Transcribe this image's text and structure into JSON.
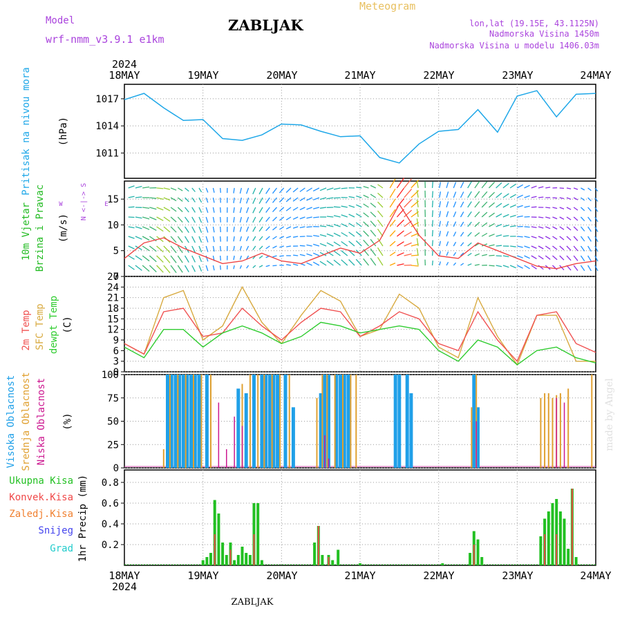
{
  "header": {
    "model_label": "Model",
    "model_name": "wrf-nmm_v3.9.1 e1km",
    "station": "ZABLJAK",
    "meteogram_label": "Meteogram",
    "lonlat": "lon,lat (19.15E, 43.1125N)",
    "elevation": "Nadmorska Visina 1450m",
    "model_elevation": "Nadmorska Visina u modelu 1406.03m"
  },
  "footer": {
    "station": "ZABLJAK",
    "watermark": "made by Angel"
  },
  "colors": {
    "pressure": "#1ea7e8",
    "total_precip": "#22c022",
    "convective": "#f04848",
    "frozen": "#f08030",
    "snow": "#4444ee",
    "graupel": "#22cccc",
    "temp2m": "#f05050",
    "sfc_temp": "#d8aa40",
    "dewpoint": "#30cc30",
    "high_cloud": "#20a0e8",
    "mid_cloud": "#e0a030",
    "low_cloud": "#cc1890",
    "wind_title": "#22bb22",
    "wind_speed": "#ee4444",
    "wind_dir_legend": "#aa44dd"
  },
  "chart_data": [
    {
      "type": "line",
      "panel": "pressure",
      "year_label": "2024",
      "x_tick_labels": [
        "18MAY",
        "19MAY",
        "20MAY",
        "21MAY",
        "22MAY",
        "23MAY",
        "24MAY"
      ],
      "x": [
        0,
        0.25,
        0.5,
        0.75,
        1,
        1.25,
        1.5,
        1.75,
        2,
        2.25,
        2.5,
        2.75,
        3,
        3.25,
        3.5,
        3.75,
        4,
        4.25,
        4.5,
        4.75,
        5,
        5.25,
        5.5,
        5.75,
        6
      ],
      "ylabel_title": "Pritisak na nivou mora",
      "ylabel_unit": "(hPa)",
      "y_ticks": [
        1011,
        1014,
        1017
      ],
      "ylim": [
        1008.2,
        1018.6
      ],
      "series": [
        {
          "values": [
            1016.9,
            1017.6,
            1016.0,
            1014.6,
            1014.7,
            1012.6,
            1012.4,
            1013.0,
            1014.2,
            1014.1,
            1013.4,
            1012.8,
            1012.9,
            1010.5,
            1009.9,
            1012.0,
            1013.4,
            1013.6,
            1015.8,
            1013.3,
            1017.3,
            1017.9,
            1015.0,
            1017.5,
            1017.6
          ]
        }
      ]
    },
    {
      "type": "line",
      "panel": "wind",
      "ylabel_title_1": "10m Vjetar",
      "ylabel_title_2": "Brzina i Pravac",
      "ylabel_unit": "(m/s)",
      "y_ticks": [
        0,
        5,
        10,
        15
      ],
      "ylim": [
        0,
        18.5
      ],
      "direction_legend_w": "W",
      "direction_legend_e": "E",
      "direction_legend_arrows": "N <-|-> S",
      "series": [
        {
          "values": [
            3.5,
            6.5,
            7.5,
            5.5,
            4.0,
            2.5,
            3.0,
            4.5,
            3.0,
            2.5,
            4.0,
            5.5,
            4.5,
            7.0,
            14.0,
            8.0,
            4.0,
            3.5,
            6.5,
            5.0,
            3.5,
            2.0,
            1.5,
            2.5,
            3.0
          ]
        }
      ]
    },
    {
      "type": "line",
      "panel": "temperature",
      "ylabel_2m": "2m Temp",
      "ylabel_sfc": "SFC Temp",
      "ylabel_dewpt": "dewpt Temp",
      "ylabel_unit": "(C)",
      "y_ticks": [
        0,
        3,
        6,
        9,
        12,
        15,
        18,
        21,
        24,
        27
      ],
      "ylim": [
        0,
        27
      ],
      "series": [
        {
          "name": "2m Temp",
          "values": [
            8,
            5,
            17,
            18,
            10,
            11,
            18,
            13,
            9,
            14,
            18,
            17,
            10,
            13,
            17,
            15,
            8,
            6,
            17,
            9,
            3,
            16,
            17,
            8,
            5.5
          ]
        },
        {
          "name": "SFC Temp",
          "values": [
            8,
            5,
            21,
            23,
            9,
            13,
            24,
            14,
            8,
            16,
            23,
            20,
            10,
            12,
            22,
            18,
            7,
            4,
            21,
            10,
            2,
            16,
            16,
            3,
            3
          ]
        },
        {
          "name": "dewpt Temp",
          "values": [
            7,
            4,
            12,
            12,
            7,
            11,
            13,
            11,
            8,
            10,
            14,
            13,
            11,
            12,
            13,
            12,
            6,
            3,
            9,
            7,
            2,
            6,
            7,
            4,
            2.5
          ]
        }
      ]
    },
    {
      "type": "bar",
      "panel": "clouds",
      "ylabel_high": "Visoka Oblacnost",
      "ylabel_mid": "Srednja Oblacnost",
      "ylabel_low": "Niska Oblacnost",
      "ylabel_unit": "(%)",
      "y_ticks": [
        0,
        25,
        50,
        75,
        100
      ],
      "ylim": [
        0,
        100
      ],
      "series": [
        {
          "name": "Visoka Oblacnost",
          "points": [
            [
              0.55,
              100
            ],
            [
              0.6,
              100
            ],
            [
              0.65,
              100
            ],
            [
              0.7,
              100
            ],
            [
              0.75,
              100
            ],
            [
              0.8,
              100
            ],
            [
              0.85,
              100
            ],
            [
              0.9,
              100
            ],
            [
              0.95,
              100
            ],
            [
              1.05,
              100
            ],
            [
              1.45,
              85
            ],
            [
              1.55,
              80
            ],
            [
              1.65,
              100
            ],
            [
              1.75,
              100
            ],
            [
              1.8,
              100
            ],
            [
              1.85,
              100
            ],
            [
              1.9,
              100
            ],
            [
              1.95,
              100
            ],
            [
              2.05,
              100
            ],
            [
              2.15,
              65
            ],
            [
              2.5,
              80
            ],
            [
              2.55,
              100
            ],
            [
              2.6,
              100
            ],
            [
              2.7,
              100
            ],
            [
              2.75,
              100
            ],
            [
              2.8,
              100
            ],
            [
              2.85,
              100
            ],
            [
              3.45,
              100
            ],
            [
              3.5,
              100
            ],
            [
              3.6,
              100
            ],
            [
              3.65,
              80
            ],
            [
              4.45,
              100
            ],
            [
              4.5,
              65
            ]
          ]
        },
        {
          "name": "Srednja Oblacnost",
          "points": [
            [
              0.5,
              20
            ],
            [
              0.58,
              100
            ],
            [
              0.68,
              100
            ],
            [
              0.78,
              100
            ],
            [
              0.88,
              100
            ],
            [
              0.98,
              100
            ],
            [
              1.1,
              100
            ],
            [
              1.5,
              90
            ],
            [
              1.6,
              100
            ],
            [
              1.7,
              100
            ],
            [
              1.78,
              100
            ],
            [
              1.88,
              100
            ],
            [
              1.98,
              100
            ],
            [
              2.1,
              100
            ],
            [
              2.45,
              75
            ],
            [
              2.52,
              100
            ],
            [
              2.58,
              100
            ],
            [
              2.68,
              100
            ],
            [
              2.78,
              100
            ],
            [
              2.88,
              100
            ],
            [
              2.95,
              100
            ],
            [
              4.42,
              65
            ],
            [
              4.48,
              100
            ],
            [
              5.3,
              75
            ],
            [
              5.35,
              80
            ],
            [
              5.4,
              80
            ],
            [
              5.45,
              75
            ],
            [
              5.5,
              78
            ],
            [
              5.55,
              80
            ],
            [
              5.65,
              85
            ],
            [
              5.95,
              100
            ]
          ]
        },
        {
          "name": "Niska Oblacnost",
          "points": [
            [
              1.2,
              70
            ],
            [
              1.3,
              20
            ],
            [
              1.4,
              55
            ],
            [
              1.5,
              45
            ],
            [
              2.55,
              35
            ],
            [
              2.6,
              10
            ],
            [
              4.48,
              50
            ],
            [
              5.5,
              75
            ],
            [
              5.6,
              70
            ]
          ]
        }
      ]
    },
    {
      "type": "bar",
      "panel": "precipitation",
      "ylabel": "1hr Precip (mm)",
      "x_tick_labels": [
        "18MAY",
        "19MAY",
        "20MAY",
        "21MAY",
        "22MAY",
        "23MAY",
        "24MAY"
      ],
      "year_label": "2024",
      "y_ticks": [
        0.2,
        0.4,
        0.6,
        0.8
      ],
      "ylim": [
        0,
        0.92
      ],
      "legend": [
        "Ukupna Kisa",
        "Konvek.Kisa",
        "Zaledj.Kisa",
        "Snijeg",
        "Grad"
      ],
      "series": [
        {
          "name": "Ukupna Kisa",
          "points": [
            [
              1.0,
              0.05
            ],
            [
              1.05,
              0.08
            ],
            [
              1.1,
              0.12
            ],
            [
              1.15,
              0.63
            ],
            [
              1.2,
              0.5
            ],
            [
              1.25,
              0.22
            ],
            [
              1.3,
              0.1
            ],
            [
              1.35,
              0.22
            ],
            [
              1.4,
              0.05
            ],
            [
              1.45,
              0.1
            ],
            [
              1.5,
              0.18
            ],
            [
              1.55,
              0.12
            ],
            [
              1.6,
              0.1
            ],
            [
              1.65,
              0.6
            ],
            [
              1.7,
              0.6
            ],
            [
              1.75,
              0.05
            ],
            [
              2.42,
              0.22
            ],
            [
              2.47,
              0.38
            ],
            [
              2.52,
              0.1
            ],
            [
              2.6,
              0.1
            ],
            [
              2.65,
              0.05
            ],
            [
              2.72,
              0.15
            ],
            [
              3.0,
              0.02
            ],
            [
              4.05,
              0.02
            ],
            [
              4.4,
              0.12
            ],
            [
              4.45,
              0.33
            ],
            [
              4.5,
              0.25
            ],
            [
              4.55,
              0.08
            ],
            [
              5.3,
              0.28
            ],
            [
              5.35,
              0.45
            ],
            [
              5.4,
              0.52
            ],
            [
              5.45,
              0.6
            ],
            [
              5.5,
              0.64
            ],
            [
              5.55,
              0.52
            ],
            [
              5.6,
              0.45
            ],
            [
              5.65,
              0.16
            ],
            [
              5.7,
              0.74
            ],
            [
              5.75,
              0.08
            ]
          ]
        },
        {
          "name": "Konvek.Kisa",
          "points": [
            [
              1.15,
              0.3
            ],
            [
              1.35,
              0.15
            ],
            [
              1.65,
              0.3
            ],
            [
              2.47,
              0.38
            ],
            [
              2.6,
              0.08
            ],
            [
              4.45,
              0.2
            ],
            [
              5.35,
              0.3
            ],
            [
              5.5,
              0.3
            ],
            [
              5.7,
              0.74
            ]
          ]
        }
      ]
    }
  ]
}
